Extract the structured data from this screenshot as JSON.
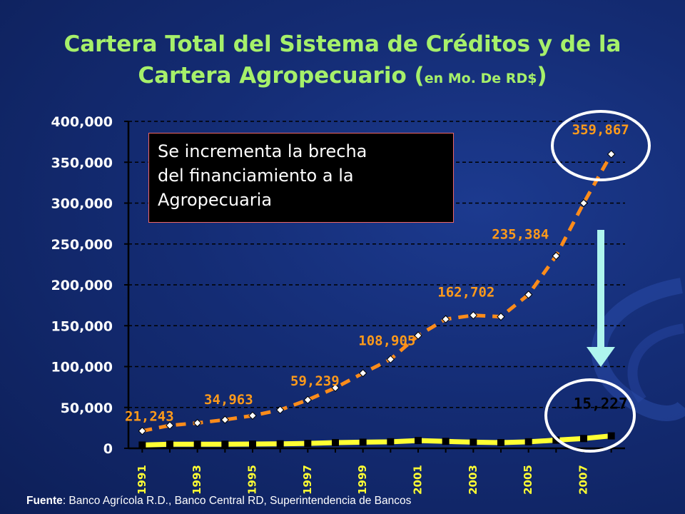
{
  "title": {
    "line1": "Cartera Total del Sistema de Créditos  y de la",
    "line2": "Cartera Agropecuario (",
    "small": "en Mo. De RD$",
    "close": ")"
  },
  "callout": {
    "line1": "Se incrementa la brecha",
    "line2": "del financiamiento a la",
    "line3": "Agropecuaria"
  },
  "source": {
    "label": "Fuente",
    "text": ": Banco Agrícola R.D., Banco Central RD, Superintendencia de Bancos"
  },
  "colors": {
    "title": "#a6f06a",
    "total_series": "#ff8c1a",
    "agro_series": "#ffff33",
    "label": "#ff9a1a",
    "circle": "#ffffff",
    "arrow": "#aef5ee"
  },
  "chart_data": {
    "type": "line",
    "ylim": [
      0,
      400000
    ],
    "yticks": [
      "0",
      "50,000",
      "100,000",
      "150,000",
      "200,000",
      "250,000",
      "300,000",
      "350,000",
      "400,000"
    ],
    "xtick_labels": [
      "1991",
      "1993",
      "1995",
      "1997",
      "1999",
      "2001",
      "2003",
      "2005",
      "2007"
    ],
    "x": [
      1991,
      1992,
      1993,
      1994,
      1995,
      1996,
      1997,
      1998,
      1999,
      2000,
      2001,
      2002,
      2003,
      2004,
      2005,
      2006,
      2007,
      2008
    ],
    "series": [
      {
        "name": "",
        "values": [
          21243,
          28000,
          31000,
          34963,
          40000,
          47000,
          59239,
          74000,
          92000,
          108905,
          138000,
          158000,
          162702,
          161000,
          188000,
          235384,
          300000,
          359867
        ]
      },
      {
        "name": "",
        "values": [
          4000,
          5000,
          5000,
          5000,
          5200,
          5500,
          6000,
          7000,
          7500,
          8000,
          9500,
          8500,
          7500,
          7000,
          8000,
          10000,
          12000,
          15227
        ]
      }
    ],
    "data_labels": [
      {
        "text": "21,243",
        "x": 1991,
        "y": 21243
      },
      {
        "text": "34,963",
        "x": 1994,
        "y": 34963
      },
      {
        "text": "59,239",
        "x": 1997,
        "y": 59239
      },
      {
        "text": "108,905",
        "x": 2000,
        "y": 108905
      },
      {
        "text": "162,702",
        "x": 2003,
        "y": 162702
      },
      {
        "text": "235,384",
        "x": 2006,
        "y": 235384
      },
      {
        "text": "359,867",
        "x": 2008,
        "y": 359867
      },
      {
        "text": "15,227",
        "x": 2008,
        "y": 15227
      }
    ],
    "grid": true
  }
}
